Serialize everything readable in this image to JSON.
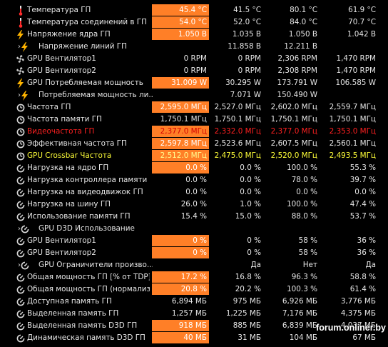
{
  "colors": {
    "background": "#000000",
    "highlight": "#ff7f27",
    "warning_red": "#ff2020",
    "accent_yellow": "#ffff38",
    "text": "#e6e6e6"
  },
  "watermark": "forum.onliner.by",
  "rows": [
    {
      "icon": "thermometer-icon",
      "label": "Температура ГП",
      "current": "45.4 °C",
      "min": "41.5 °C",
      "max": "80.1 °C",
      "avg": "61.9 °C",
      "highlight": true
    },
    {
      "icon": "thermometer-icon",
      "label": "Температура соединений в ГП",
      "current": "54.0 °C",
      "min": "52.0 °C",
      "max": "84.0 °C",
      "avg": "70.7 °C",
      "highlight": true
    },
    {
      "icon": "lightning-icon",
      "label": "Напряжение ядра ГП",
      "current": "1.050 В",
      "min": "1.035 В",
      "max": "1.050 В",
      "avg": "1.042 В",
      "highlight": true
    },
    {
      "icon": "lightning-icon",
      "label": "Напряжение линий ГП",
      "current": "",
      "min": "11.858 В",
      "max": "12.211 В",
      "avg": "",
      "highlight": false,
      "expandable": true
    },
    {
      "icon": "fan-icon",
      "label": "GPU Вентилятор1",
      "current": "0 RPM",
      "min": "0 RPM",
      "max": "2,306 RPM",
      "avg": "1,470 RPM",
      "highlight": false
    },
    {
      "icon": "fan-icon",
      "label": "GPU Вентилятор2",
      "current": "0 RPM",
      "min": "0 RPM",
      "max": "2,308 RPM",
      "avg": "1,470 RPM",
      "highlight": false
    },
    {
      "icon": "lightning-icon",
      "label": "GPU Потребляемая мощность",
      "current": "31.009 W",
      "min": "30.295 W",
      "max": "173.791 W",
      "avg": "106.585 W",
      "highlight": true
    },
    {
      "icon": "lightning-icon",
      "label": "Потребляемая мощность ли...",
      "current": "",
      "min": "7.071 W",
      "max": "150.490 W",
      "avg": "",
      "highlight": false,
      "expandable": true
    },
    {
      "icon": "clock-icon",
      "label": "Частота ГП",
      "current": "2,595.0 МГц",
      "min": "2,527.0 МГц",
      "max": "2,602.0 МГц",
      "avg": "2,559.7 МГц",
      "highlight": true
    },
    {
      "icon": "clock-icon",
      "label": "Частота памяти ГП",
      "current": "1,750.1 МГц",
      "min": "1,750.1 МГц",
      "max": "1,750.1 МГц",
      "avg": "1,750.1 МГц",
      "highlight": false
    },
    {
      "icon": "clock-icon",
      "label": "Видеочастота ГП",
      "current": "2,377.0 МГц",
      "min": "2,332.0 МГц",
      "max": "2,377.0 МГц",
      "avg": "2,353.0 МГц",
      "highlight": true,
      "tone": "red"
    },
    {
      "icon": "clock-icon",
      "label": "Эффективная частота ГП",
      "current": "2,597.8 МГц",
      "min": "2,523.6 МГц",
      "max": "2,607.5 МГц",
      "avg": "2,560.1 МГц",
      "highlight": true
    },
    {
      "icon": "clock-icon",
      "label": "GPU Crossbar Частота",
      "current": "2,512.0 МГц",
      "min": "2,475.0 МГц",
      "max": "2,520.0 МГц",
      "avg": "2,493.5 МГц",
      "highlight": true,
      "tone": "yellow"
    },
    {
      "icon": "gauge-icon",
      "label": "Нагрузка на ядро ГП",
      "current": "0.0 %",
      "min": "0.0 %",
      "max": "100.0 %",
      "avg": "55.3 %",
      "highlight": true
    },
    {
      "icon": "gauge-icon",
      "label": "Нагрузка контроллера памяти ГП",
      "current": "0.0 %",
      "min": "0.0 %",
      "max": "78.0 %",
      "avg": "39.7 %",
      "highlight": false
    },
    {
      "icon": "gauge-icon",
      "label": "Нагрузка на видеодвижок ГП",
      "current": "0.0 %",
      "min": "0.0 %",
      "max": "0.0 %",
      "avg": "0.0 %",
      "highlight": false
    },
    {
      "icon": "gauge-icon",
      "label": "Нагрузка на шину ГП",
      "current": "26.0 %",
      "min": "1.0 %",
      "max": "100.0 %",
      "avg": "47.4 %",
      "highlight": false
    },
    {
      "icon": "gauge-icon",
      "label": "Использование памяти ГП",
      "current": "15.4 %",
      "min": "15.0 %",
      "max": "88.0 %",
      "avg": "53.7 %",
      "highlight": false
    },
    {
      "icon": "gauge-icon",
      "label": "GPU D3D Использование",
      "current": "",
      "min": "",
      "max": "",
      "avg": "",
      "highlight": false,
      "expandable": true
    },
    {
      "icon": "gauge-icon",
      "label": "GPU Вентилятор1",
      "current": "0 %",
      "min": "0 %",
      "max": "58 %",
      "avg": "36 %",
      "highlight": true
    },
    {
      "icon": "gauge-icon",
      "label": "GPU Вентилятор2",
      "current": "0 %",
      "min": "0 %",
      "max": "58 %",
      "avg": "36 %",
      "highlight": true
    },
    {
      "icon": "gauge-icon",
      "label": "GPU Ограничители произво...",
      "current": "",
      "min": "Да",
      "max": "Нет",
      "avg": "Да",
      "highlight": false,
      "expandable": true
    },
    {
      "icon": "gauge-icon",
      "label": "Общая мощность ГП [% от TDP]",
      "current": "17.2 %",
      "min": "16.8 %",
      "max": "96.3 %",
      "avg": "58.8 %",
      "highlight": true
    },
    {
      "icon": "gauge-icon",
      "label": "Общая мощность ГП (нормализ...",
      "current": "20.8 %",
      "min": "20.2 %",
      "max": "100.3 %",
      "avg": "61.4 %",
      "highlight": true
    },
    {
      "icon": "gauge-icon",
      "label": "Доступная память ГП",
      "current": "6,894 МБ",
      "min": "975 МБ",
      "max": "6,926 МБ",
      "avg": "3,776 МБ",
      "highlight": false
    },
    {
      "icon": "gauge-icon",
      "label": "Выделенная память ГП",
      "current": "1,257 МБ",
      "min": "1,225 МБ",
      "max": "7,176 МБ",
      "avg": "4,375 МБ",
      "highlight": false
    },
    {
      "icon": "gauge-icon",
      "label": "Выделенная память D3D ГП",
      "current": "918 МБ",
      "min": "885 МБ",
      "max": "6,839 МБ",
      "avg": "4,037 МБ",
      "highlight": true
    },
    {
      "icon": "gauge-icon",
      "label": "Динамическая память D3D ГП",
      "current": "40 МБ",
      "min": "31 МБ",
      "max": "104 МБ",
      "avg": "67 МБ",
      "highlight": true
    }
  ]
}
